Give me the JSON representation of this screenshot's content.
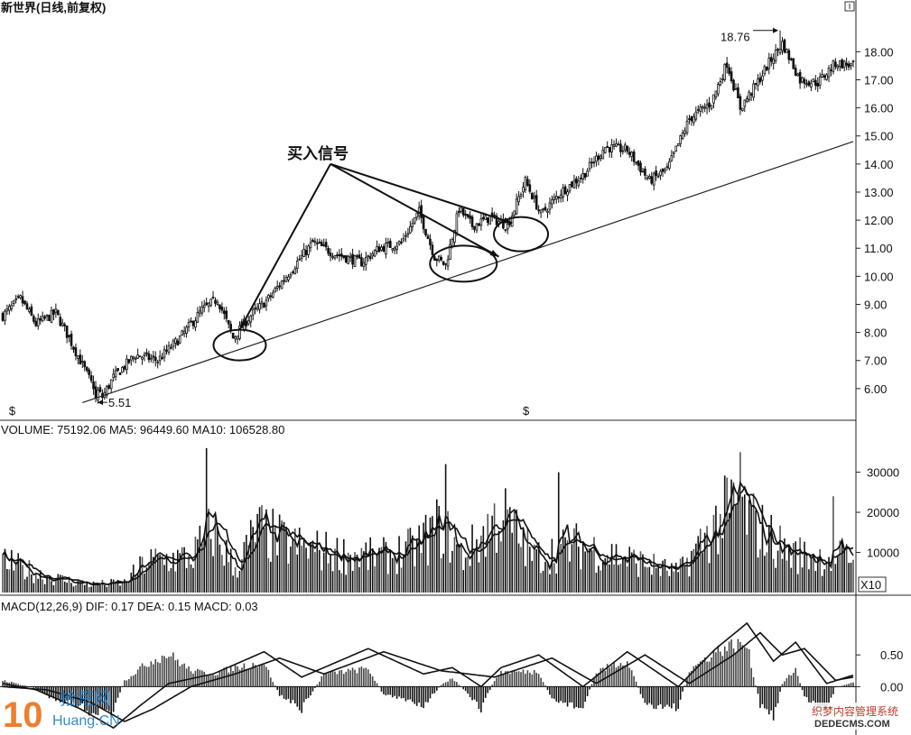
{
  "chart_data": [
    {
      "type": "candlestick",
      "title": "新世界(日线,前复权)",
      "ylim": [
        5.0,
        19.2
      ],
      "yticks": [
        "18.00",
        "17.00",
        "16.00",
        "15.00",
        "14.00",
        "13.00",
        "12.00",
        "11.00",
        "10.00",
        "9.00",
        "8.00",
        "7.00",
        "6.00"
      ],
      "ytick_values": [
        18,
        17,
        16,
        15,
        14,
        13,
        12,
        11,
        10,
        9,
        8,
        7,
        6
      ],
      "price_path": [
        {
          "i": 0,
          "v": 8.6
        },
        {
          "i": 8,
          "v": 9.2
        },
        {
          "i": 15,
          "v": 8.3
        },
        {
          "i": 24,
          "v": 8.7
        },
        {
          "i": 30,
          "v": 7.8
        },
        {
          "i": 40,
          "v": 6.2
        },
        {
          "i": 45,
          "v": 5.7
        },
        {
          "i": 50,
          "v": 6.4
        },
        {
          "i": 60,
          "v": 7.2
        },
        {
          "i": 70,
          "v": 7.0
        },
        {
          "i": 80,
          "v": 7.8
        },
        {
          "i": 90,
          "v": 8.8
        },
        {
          "i": 97,
          "v": 9.2
        },
        {
          "i": 104,
          "v": 7.8
        },
        {
          "i": 112,
          "v": 8.6
        },
        {
          "i": 120,
          "v": 9.2
        },
        {
          "i": 130,
          "v": 10.2
        },
        {
          "i": 140,
          "v": 11.2
        },
        {
          "i": 150,
          "v": 10.8
        },
        {
          "i": 162,
          "v": 10.5
        },
        {
          "i": 170,
          "v": 11.0
        },
        {
          "i": 180,
          "v": 11.2
        },
        {
          "i": 188,
          "v": 12.3
        },
        {
          "i": 195,
          "v": 10.7
        },
        {
          "i": 200,
          "v": 10.4
        },
        {
          "i": 206,
          "v": 12.4
        },
        {
          "i": 212,
          "v": 11.8
        },
        {
          "i": 220,
          "v": 12.1
        },
        {
          "i": 228,
          "v": 11.8
        },
        {
          "i": 236,
          "v": 13.4
        },
        {
          "i": 243,
          "v": 12.2
        },
        {
          "i": 252,
          "v": 13.0
        },
        {
          "i": 262,
          "v": 13.6
        },
        {
          "i": 272,
          "v": 14.6
        },
        {
          "i": 282,
          "v": 14.5
        },
        {
          "i": 292,
          "v": 13.4
        },
        {
          "i": 300,
          "v": 13.8
        },
        {
          "i": 310,
          "v": 15.6
        },
        {
          "i": 320,
          "v": 16.2
        },
        {
          "i": 327,
          "v": 17.6
        },
        {
          "i": 333,
          "v": 16.0
        },
        {
          "i": 340,
          "v": 16.8
        },
        {
          "i": 346,
          "v": 17.6
        },
        {
          "i": 352,
          "v": 18.3
        },
        {
          "i": 360,
          "v": 17.0
        },
        {
          "i": 368,
          "v": 16.9
        },
        {
          "i": 376,
          "v": 17.6
        },
        {
          "i": 384,
          "v": 17.5
        }
      ],
      "n_bars": 385,
      "high_label": "18.76",
      "high_value": 18.76,
      "high_index": 351,
      "low_label": "5.51",
      "low_value": 5.51,
      "low_index": 42,
      "trendline": {
        "from": {
          "i": 36,
          "v": 5.5
        },
        "to": {
          "i": 384,
          "v": 14.8
        }
      },
      "circles": [
        {
          "i": 107,
          "v": 7.55,
          "rx": 29,
          "ry": 17
        },
        {
          "i": 208,
          "v": 10.45,
          "rx": 37,
          "ry": 20
        },
        {
          "i": 234,
          "v": 11.5,
          "rx": 30,
          "ry": 19
        }
      ],
      "annotation": {
        "text": "买入信号",
        "anchor": {
          "i": 148,
          "v": 14.0
        },
        "targets": [
          {
            "i": 107,
            "v": 8.1
          },
          {
            "i": 230,
            "v": 11.9
          },
          {
            "i": 224,
            "v": 10.7
          }
        ]
      },
      "markers": [
        {
          "i": 4,
          "label": "$"
        },
        {
          "i": 236,
          "label": "$"
        }
      ]
    },
    {
      "type": "bar",
      "title": "VOLUME: 75192.06  MA5: 96449.60  MA10: 106528.80",
      "ylim": [
        0,
        38000
      ],
      "yticks": [
        "30000",
        "20000",
        "10000"
      ],
      "ytick_values": [
        30000,
        20000,
        10000
      ],
      "unit_label": "X10",
      "volume_path": [
        {
          "i": 0,
          "v": 8000
        },
        {
          "i": 20,
          "v": 4000
        },
        {
          "i": 40,
          "v": 2000
        },
        {
          "i": 55,
          "v": 2500
        },
        {
          "i": 65,
          "v": 8000
        },
        {
          "i": 85,
          "v": 9000
        },
        {
          "i": 95,
          "v": 16000
        },
        {
          "i": 105,
          "v": 6000
        },
        {
          "i": 115,
          "v": 16000
        },
        {
          "i": 130,
          "v": 12000
        },
        {
          "i": 150,
          "v": 10000
        },
        {
          "i": 170,
          "v": 9000
        },
        {
          "i": 185,
          "v": 11000
        },
        {
          "i": 198,
          "v": 17000
        },
        {
          "i": 208,
          "v": 9000
        },
        {
          "i": 225,
          "v": 20000
        },
        {
          "i": 240,
          "v": 9000
        },
        {
          "i": 260,
          "v": 12000
        },
        {
          "i": 280,
          "v": 9000
        },
        {
          "i": 305,
          "v": 5000
        },
        {
          "i": 320,
          "v": 16000
        },
        {
          "i": 330,
          "v": 22000
        },
        {
          "i": 340,
          "v": 17000
        },
        {
          "i": 355,
          "v": 10000
        },
        {
          "i": 370,
          "v": 9000
        },
        {
          "i": 384,
          "v": 9000
        }
      ],
      "spikes": [
        {
          "i": 92,
          "v": 36000
        },
        {
          "i": 200,
          "v": 32000
        },
        {
          "i": 251,
          "v": 30000
        },
        {
          "i": 333,
          "v": 35000
        },
        {
          "i": 375,
          "v": 24000
        }
      ]
    },
    {
      "type": "bar",
      "title": "MACD(12,26,9)  DIF: 0.17  DEA: 0.15  MACD: 0.03",
      "ylim": [
        -0.72,
        1.1
      ],
      "yticks": [
        "0.50",
        "0.00"
      ],
      "ytick_values": [
        0.5,
        0.0
      ],
      "dif_path": [
        {
          "i": 0,
          "v": 0.05
        },
        {
          "i": 15,
          "v": -0.05
        },
        {
          "i": 35,
          "v": -0.35
        },
        {
          "i": 50,
          "v": -0.65
        },
        {
          "i": 62,
          "v": -0.3
        },
        {
          "i": 75,
          "v": 0.05
        },
        {
          "i": 95,
          "v": 0.2
        },
        {
          "i": 118,
          "v": 0.55
        },
        {
          "i": 135,
          "v": 0.15
        },
        {
          "i": 165,
          "v": 0.6
        },
        {
          "i": 190,
          "v": 0.2
        },
        {
          "i": 203,
          "v": 0.3
        },
        {
          "i": 216,
          "v": 0.0
        },
        {
          "i": 225,
          "v": 0.3
        },
        {
          "i": 242,
          "v": 0.5
        },
        {
          "i": 262,
          "v": 0.0
        },
        {
          "i": 282,
          "v": 0.55
        },
        {
          "i": 305,
          "v": 0.0
        },
        {
          "i": 322,
          "v": 0.6
        },
        {
          "i": 336,
          "v": 1.0
        },
        {
          "i": 348,
          "v": 0.4
        },
        {
          "i": 358,
          "v": 0.7
        },
        {
          "i": 372,
          "v": 0.05
        },
        {
          "i": 384,
          "v": 0.18
        }
      ],
      "dea_path": [
        {
          "i": 0,
          "v": 0.0
        },
        {
          "i": 20,
          "v": -0.05
        },
        {
          "i": 40,
          "v": -0.25
        },
        {
          "i": 55,
          "v": -0.55
        },
        {
          "i": 68,
          "v": -0.35
        },
        {
          "i": 85,
          "v": 0.0
        },
        {
          "i": 105,
          "v": 0.2
        },
        {
          "i": 125,
          "v": 0.45
        },
        {
          "i": 145,
          "v": 0.2
        },
        {
          "i": 172,
          "v": 0.55
        },
        {
          "i": 198,
          "v": 0.25
        },
        {
          "i": 210,
          "v": 0.2
        },
        {
          "i": 222,
          "v": 0.15
        },
        {
          "i": 248,
          "v": 0.45
        },
        {
          "i": 268,
          "v": 0.05
        },
        {
          "i": 290,
          "v": 0.5
        },
        {
          "i": 310,
          "v": 0.05
        },
        {
          "i": 330,
          "v": 0.5
        },
        {
          "i": 342,
          "v": 0.85
        },
        {
          "i": 352,
          "v": 0.5
        },
        {
          "i": 362,
          "v": 0.6
        },
        {
          "i": 376,
          "v": 0.1
        },
        {
          "i": 384,
          "v": 0.15
        }
      ]
    }
  ],
  "watermarks": {
    "left_number": "10",
    "left_cn": "拾荒网",
    "left_url": "Huang.CN",
    "right_cn": "织梦内容管理系统",
    "right_url": "DEDECMS.COM"
  }
}
